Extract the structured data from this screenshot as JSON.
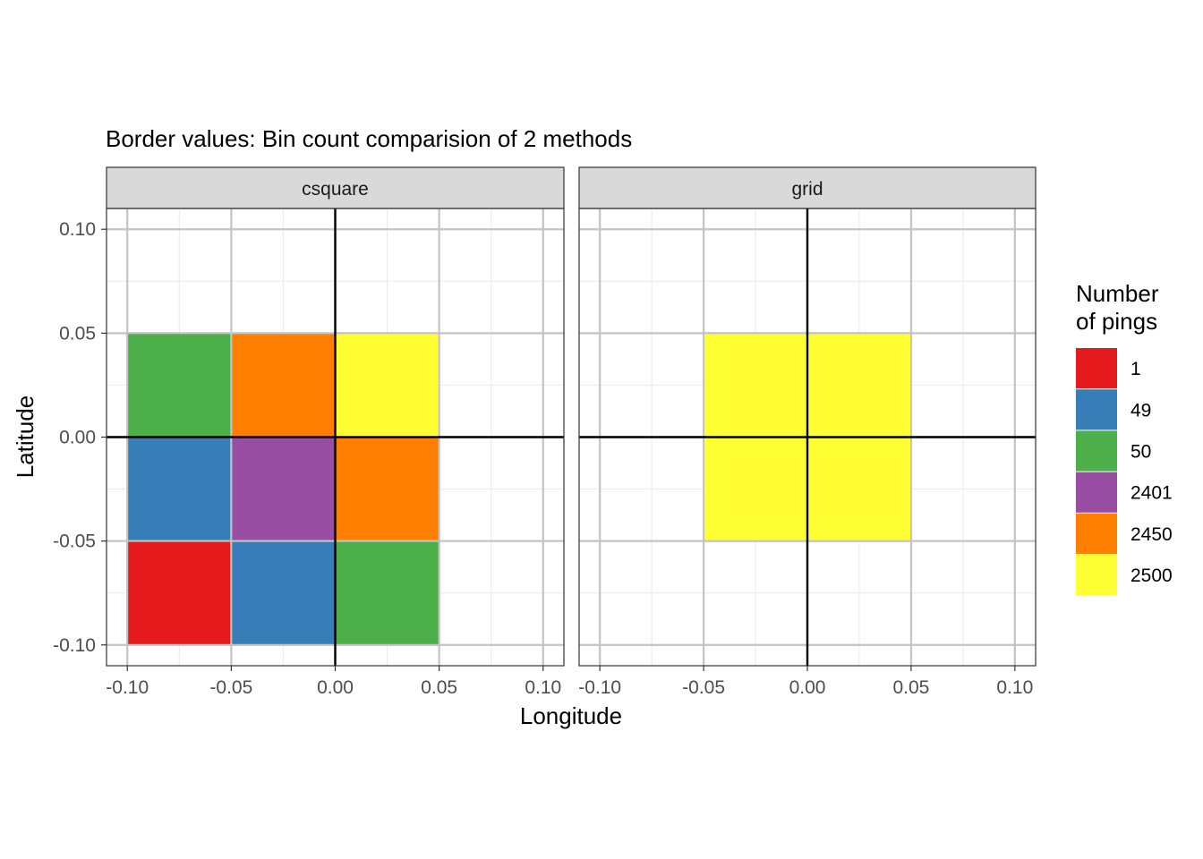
{
  "chart_data": {
    "type": "heatmap",
    "title": "Border values: Bin count comparision of 2 methods",
    "xlabel": "Longitude",
    "ylabel": "Latitude",
    "xlim": [
      -0.11,
      0.11
    ],
    "ylim": [
      -0.11,
      0.11
    ],
    "x_ticks": [
      -0.1,
      -0.05,
      0.0,
      0.05,
      0.1
    ],
    "y_ticks": [
      -0.1,
      -0.05,
      0.0,
      0.05,
      0.1
    ],
    "x_tick_labels": [
      "-0.10",
      "-0.05",
      "0.00",
      "0.05",
      "0.10"
    ],
    "y_tick_labels": [
      "-0.10",
      "-0.05",
      "0.00",
      "0.05",
      "0.10"
    ],
    "grid": true,
    "reference_lines": {
      "x": 0,
      "y": 0
    },
    "legend": {
      "title_lines": [
        "Number",
        "of pings"
      ],
      "position": "right",
      "entries": [
        {
          "label": "1",
          "color": "#E41A1C"
        },
        {
          "label": "49",
          "color": "#377EB8"
        },
        {
          "label": "50",
          "color": "#4DAF4A"
        },
        {
          "label": "2401",
          "color": "#984EA3"
        },
        {
          "label": "2450",
          "color": "#FF7F00"
        },
        {
          "label": "2500",
          "color": "#FFFF33"
        }
      ]
    },
    "panels": [
      {
        "name": "csquare",
        "cells": [
          {
            "x": [
              -0.1,
              -0.05
            ],
            "y": [
              0.0,
              0.05
            ],
            "value": "50"
          },
          {
            "x": [
              -0.05,
              0.0
            ],
            "y": [
              0.0,
              0.05
            ],
            "value": "2450"
          },
          {
            "x": [
              0.0,
              0.05
            ],
            "y": [
              0.0,
              0.05
            ],
            "value": "2500"
          },
          {
            "x": [
              -0.1,
              -0.05
            ],
            "y": [
              -0.05,
              0.0
            ],
            "value": "49"
          },
          {
            "x": [
              -0.05,
              0.0
            ],
            "y": [
              -0.05,
              0.0
            ],
            "value": "2401"
          },
          {
            "x": [
              0.0,
              0.05
            ],
            "y": [
              -0.05,
              0.0
            ],
            "value": "2450"
          },
          {
            "x": [
              -0.1,
              -0.05
            ],
            "y": [
              -0.1,
              -0.05
            ],
            "value": "1"
          },
          {
            "x": [
              -0.05,
              0.0
            ],
            "y": [
              -0.1,
              -0.05
            ],
            "value": "49"
          },
          {
            "x": [
              0.0,
              0.05
            ],
            "y": [
              -0.1,
              -0.05
            ],
            "value": "50"
          }
        ]
      },
      {
        "name": "grid",
        "cells": [
          {
            "x": [
              -0.05,
              0.0
            ],
            "y": [
              0.0,
              0.05
            ],
            "value": "2500"
          },
          {
            "x": [
              0.0,
              0.05
            ],
            "y": [
              0.0,
              0.05
            ],
            "value": "2500"
          },
          {
            "x": [
              -0.05,
              0.0
            ],
            "y": [
              -0.05,
              0.0
            ],
            "value": "2500"
          },
          {
            "x": [
              0.0,
              0.05
            ],
            "y": [
              -0.05,
              0.0
            ],
            "value": "2500"
          }
        ]
      }
    ]
  }
}
